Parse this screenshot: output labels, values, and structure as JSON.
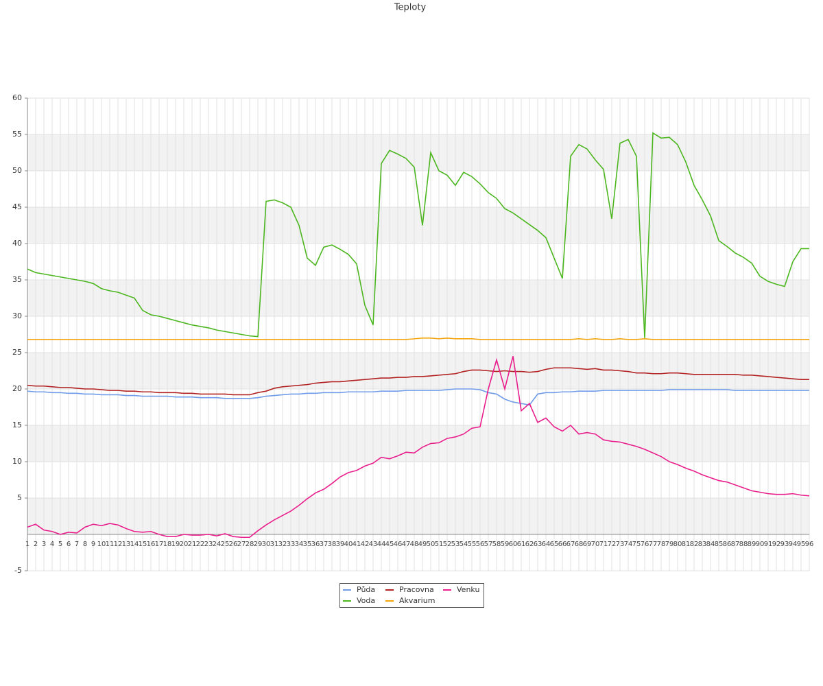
{
  "chart_data": {
    "type": "line",
    "title": "Teploty",
    "categories": [
      "1",
      "2",
      "3",
      "4",
      "5",
      "6",
      "7",
      "8",
      "9",
      "10",
      "11",
      "12",
      "13",
      "14",
      "15",
      "16",
      "17",
      "18",
      "19",
      "20",
      "21",
      "22",
      "23",
      "24",
      "25",
      "26",
      "27",
      "28",
      "29",
      "30",
      "31",
      "32",
      "33",
      "34",
      "35",
      "36",
      "37",
      "38",
      "39",
      "40",
      "41",
      "42",
      "43",
      "44",
      "45",
      "46",
      "47",
      "48",
      "49",
      "50",
      "51",
      "52",
      "53",
      "54",
      "55",
      "56",
      "57",
      "58",
      "59",
      "60",
      "61",
      "62",
      "63",
      "64",
      "65",
      "66",
      "67",
      "68",
      "69",
      "70",
      "71",
      "72",
      "73",
      "74",
      "75",
      "76",
      "77",
      "78",
      "79",
      "80",
      "81",
      "82",
      "83",
      "84",
      "85",
      "86",
      "87",
      "88",
      "89",
      "90",
      "91",
      "92",
      "93",
      "94",
      "95",
      "96"
    ],
    "ylim": [
      -5,
      60
    ],
    "yticks": [
      -5,
      5,
      10,
      15,
      20,
      25,
      30,
      35,
      40,
      45,
      50,
      55,
      60
    ],
    "grid": true,
    "series": [
      {
        "name": "Půda",
        "color": "#6f9be8",
        "values": [
          19.7,
          19.6,
          19.6,
          19.5,
          19.5,
          19.4,
          19.4,
          19.3,
          19.3,
          19.2,
          19.2,
          19.2,
          19.1,
          19.1,
          19.0,
          19.0,
          19.0,
          19.0,
          18.9,
          18.9,
          18.9,
          18.8,
          18.8,
          18.8,
          18.7,
          18.7,
          18.7,
          18.7,
          18.8,
          19.0,
          19.1,
          19.2,
          19.3,
          19.3,
          19.4,
          19.4,
          19.5,
          19.5,
          19.5,
          19.6,
          19.6,
          19.6,
          19.6,
          19.7,
          19.7,
          19.7,
          19.8,
          19.8,
          19.8,
          19.8,
          19.8,
          19.9,
          20.0,
          20.0,
          20.0,
          19.9,
          19.5,
          19.3,
          18.6,
          18.2,
          18.0,
          17.8,
          19.3,
          19.5,
          19.5,
          19.6,
          19.6,
          19.7,
          19.7,
          19.7,
          19.8,
          19.8,
          19.8,
          19.8,
          19.8,
          19.8,
          19.8,
          19.8,
          19.9,
          19.9,
          19.9,
          19.9,
          19.9,
          19.9,
          19.9,
          19.9,
          19.8,
          19.8,
          19.8,
          19.8,
          19.8,
          19.8,
          19.8,
          19.8,
          19.8,
          19.8
        ]
      },
      {
        "name": "Pracovna",
        "color": "#b22222",
        "values": [
          20.5,
          20.4,
          20.4,
          20.3,
          20.2,
          20.2,
          20.1,
          20.0,
          20.0,
          19.9,
          19.8,
          19.8,
          19.7,
          19.7,
          19.6,
          19.6,
          19.5,
          19.5,
          19.5,
          19.4,
          19.4,
          19.3,
          19.3,
          19.3,
          19.3,
          19.2,
          19.2,
          19.2,
          19.5,
          19.7,
          20.1,
          20.3,
          20.4,
          20.5,
          20.6,
          20.8,
          20.9,
          21.0,
          21.0,
          21.1,
          21.2,
          21.3,
          21.4,
          21.5,
          21.5,
          21.6,
          21.6,
          21.7,
          21.7,
          21.8,
          21.9,
          22.0,
          22.1,
          22.4,
          22.6,
          22.6,
          22.5,
          22.4,
          22.5,
          22.4,
          22.4,
          22.3,
          22.4,
          22.7,
          22.9,
          22.9,
          22.9,
          22.8,
          22.7,
          22.8,
          22.6,
          22.6,
          22.5,
          22.4,
          22.2,
          22.2,
          22.1,
          22.1,
          22.2,
          22.2,
          22.1,
          22.0,
          22.0,
          22.0,
          22.0,
          22.0,
          22.0,
          21.9,
          21.9,
          21.8,
          21.7,
          21.6,
          21.5,
          21.4,
          21.3,
          21.3
        ]
      },
      {
        "name": "Venku",
        "color": "#e91e8c",
        "values": [
          1.0,
          1.4,
          0.6,
          0.4,
          0,
          0.3,
          0.2,
          1.0,
          1.4,
          1.2,
          1.5,
          1.3,
          0.8,
          0.4,
          0.3,
          0.4,
          0.0,
          -0.3,
          -0.3,
          0.0,
          -0.1,
          -0.1,
          0.0,
          -0.2,
          0.1,
          -0.3,
          -0.4,
          -0.4,
          0.5,
          1.3,
          2.0,
          2.6,
          3.2,
          4.0,
          4.9,
          5.7,
          6.2,
          7.0,
          7.9,
          8.5,
          8.8,
          9.4,
          9.8,
          10.6,
          10.4,
          10.8,
          11.3,
          11.2,
          12.0,
          12.5,
          12.6,
          13.2,
          13.4,
          13.8,
          14.6,
          14.8,
          20.0,
          24.0,
          20.0,
          24.5,
          17.0,
          18.0,
          15.4,
          16.0,
          14.8,
          14.2,
          15.0,
          13.8,
          14.0,
          13.8,
          13.0,
          12.8,
          12.7,
          12.4,
          12.1,
          11.7,
          11.2,
          10.7,
          10.0,
          9.6,
          9.1,
          8.7,
          8.2,
          7.8,
          7.4,
          7.2,
          6.8,
          6.4,
          6.0,
          5.8,
          5.6,
          5.5,
          5.5,
          5.6,
          5.4,
          5.3
        ]
      },
      {
        "name": "Voda",
        "color": "#4cb61f",
        "values": [
          36.5,
          36,
          35.8,
          35.6,
          35.4,
          35.2,
          35,
          34.8,
          34.5,
          33.8,
          33.5,
          33.3,
          32.9,
          32.5,
          30.8,
          30.2,
          30,
          29.7,
          29.4,
          29.1,
          28.8,
          28.6,
          28.4,
          28.1,
          27.9,
          27.7,
          27.5,
          27.3,
          27.2,
          45.8,
          46,
          45.6,
          45,
          42.5,
          38,
          37,
          39.5,
          39.8,
          39.2,
          38.5,
          37.2,
          31.5,
          28.8,
          51,
          52.8,
          52.3,
          51.7,
          50.5,
          42.5,
          52.5,
          50,
          49.4,
          48,
          49.8,
          49.2,
          48.2,
          47,
          46.2,
          44.8,
          44.2,
          43.4,
          42.6,
          41.8,
          40.8,
          38,
          35.2,
          52,
          53.6,
          53,
          51.5,
          50.2,
          43.4,
          53.8,
          54.3,
          52,
          27,
          55.2,
          54.5,
          54.6,
          53.6,
          51.2,
          48,
          46,
          43.8,
          40.4,
          39.6,
          38.7,
          38.1,
          37.3,
          35.5,
          34.8,
          34.4,
          34.1,
          37.5,
          39.3,
          39.3
        ]
      },
      {
        "name": "Akvarium",
        "color": "#f5a30a",
        "values": [
          26.8,
          26.8,
          26.8,
          26.8,
          26.8,
          26.8,
          26.8,
          26.8,
          26.8,
          26.8,
          26.8,
          26.8,
          26.8,
          26.8,
          26.8,
          26.8,
          26.8,
          26.8,
          26.8,
          26.8,
          26.8,
          26.8,
          26.8,
          26.8,
          26.8,
          26.8,
          26.8,
          26.8,
          26.8,
          26.8,
          26.8,
          26.8,
          26.8,
          26.8,
          26.8,
          26.8,
          26.8,
          26.8,
          26.8,
          26.8,
          26.8,
          26.8,
          26.8,
          26.8,
          26.8,
          26.8,
          26.8,
          26.9,
          27.0,
          27.0,
          26.9,
          27.0,
          26.9,
          26.9,
          26.9,
          26.8,
          26.8,
          26.8,
          26.8,
          26.8,
          26.8,
          26.8,
          26.8,
          26.8,
          26.8,
          26.8,
          26.8,
          26.9,
          26.8,
          26.9,
          26.8,
          26.8,
          26.9,
          26.8,
          26.8,
          26.9,
          26.8,
          26.8,
          26.8,
          26.8,
          26.8,
          26.8,
          26.8,
          26.8,
          26.8,
          26.8,
          26.8,
          26.8,
          26.8,
          26.8,
          26.8,
          26.8,
          26.8,
          26.8,
          26.8,
          26.8
        ]
      }
    ]
  }
}
